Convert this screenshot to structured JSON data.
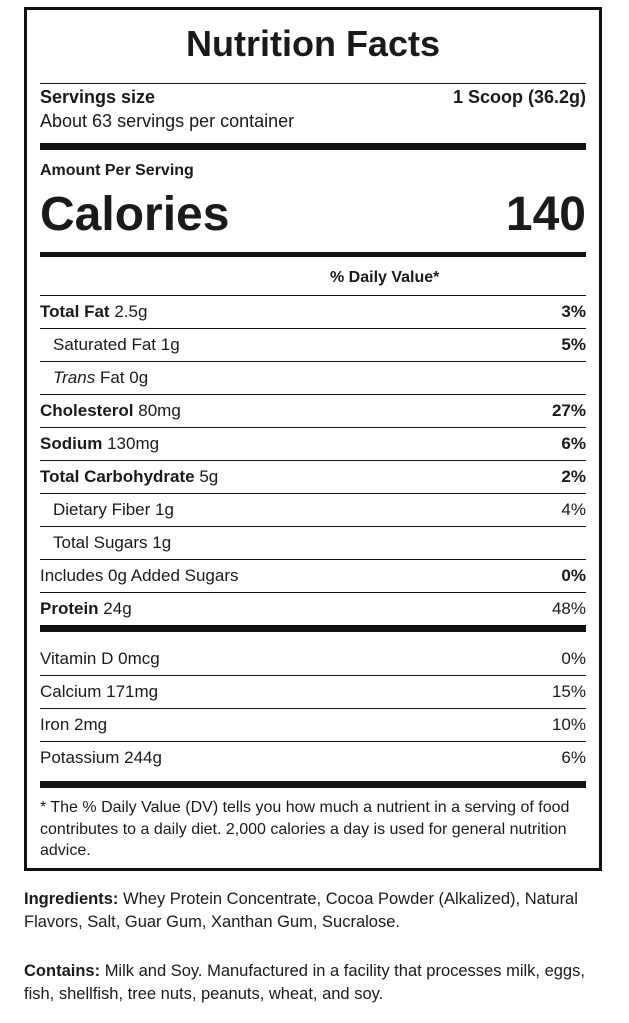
{
  "title": "Nutrition Facts",
  "serving": {
    "size_label": "Servings size",
    "size_value": "1 Scoop (36.2g)",
    "per_container": "About 63 servings per container"
  },
  "calories": {
    "amount_per_serving": "Amount Per Serving",
    "label": "Calories",
    "value": 140
  },
  "daily_value_header": "% Daily Value*",
  "nutrients": [
    {
      "name": "Total Fat",
      "amount": "2.5g",
      "dv": "3%",
      "bold": true,
      "indent": false,
      "dv_bold": true
    },
    {
      "name": "Saturated Fat",
      "amount": "1g",
      "dv": "5%",
      "bold": false,
      "indent": true,
      "dv_bold": true
    },
    {
      "name_italic": "Trans",
      "name": "Fat",
      "amount": "0g",
      "bold": false,
      "indent": true
    },
    {
      "name": "Cholesterol",
      "amount": "80mg",
      "dv": "27%",
      "bold": true,
      "indent": false,
      "dv_bold": true
    },
    {
      "name": "Sodium",
      "amount": "130mg",
      "dv": "6%",
      "bold": true,
      "indent": false,
      "dv_bold": true
    },
    {
      "name": "Total Carbohydrate",
      "amount": "5g",
      "dv": "2%",
      "bold": true,
      "indent": false,
      "dv_bold": true
    },
    {
      "name": "Dietary Fiber",
      "amount": "1g",
      "dv": "4%",
      "bold": false,
      "indent": true,
      "dv_bold": false
    },
    {
      "name": "Total Sugars",
      "amount": "1g",
      "bold": false,
      "indent": true
    },
    {
      "name": "Includes 0g Added Sugars",
      "dv": "0%",
      "bold": false,
      "indent": false,
      "dv_bold": true
    },
    {
      "name": "Protein",
      "amount": "24g",
      "dv": "48%",
      "bold": true,
      "indent": false,
      "dv_bold": false
    }
  ],
  "vitamins": [
    {
      "name": "Vitamin D",
      "amount": "0mcg",
      "dv": "0%"
    },
    {
      "name": "Calcium",
      "amount": "171mg",
      "dv": "15%"
    },
    {
      "name": "Iron",
      "amount": "2mg",
      "dv": "10%"
    },
    {
      "name": "Potassium",
      "amount": "244g",
      "dv": "6%"
    }
  ],
  "footnote": "* The % Daily Value (DV) tells you how much a nutrient in a serving of food contributes to a daily diet. 2,000 calories a day is used for general nutrition advice.",
  "ingredients": {
    "label": "Ingredients:",
    "text": "Whey Protein Concentrate, Cocoa Powder (Alkalized), Natural Flavors, Salt, Guar Gum, Xanthan Gum, Sucralose."
  },
  "contains": {
    "label": "Contains:",
    "text": "Milk and Soy. Manufactured in a facility that processes milk, eggs, fish, shellfish, tree nuts, peanuts, wheat, and soy."
  }
}
